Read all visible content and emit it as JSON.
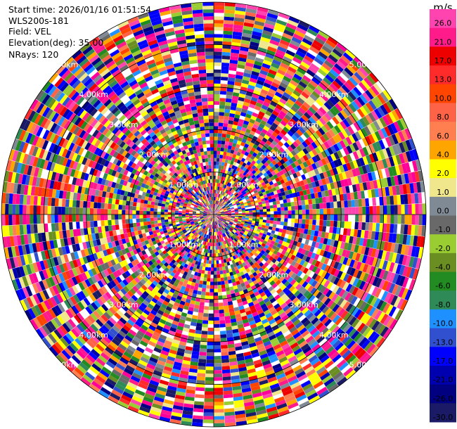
{
  "header": {
    "start_time": "Start time: 2026/01/16 01:51:54",
    "station": "WLS200s-181",
    "field": "Field: VEL",
    "elevation": "Elevation(deg): 35.00",
    "nrays": "NRays: 120"
  },
  "chart_data": {
    "type": "heatmap",
    "projection": "polar-ppi",
    "n_rays": 120,
    "max_range_km": 5.0,
    "range_rings_km": [
      1.0,
      2.0,
      3.0,
      4.0,
      5.0
    ],
    "ring_labels": [
      "1.00km",
      "2.00km",
      "3.00km",
      "4.00km",
      "5.00km"
    ],
    "colorbar": {
      "title": "m/s",
      "tick_labels": [
        "26.0",
        "21.0",
        "17.0",
        "13.0",
        "10.0",
        "8.0",
        "6.0",
        "4.0",
        "2.0",
        "1.0",
        "0.0",
        "-1.0",
        "-2.0",
        "-4.0",
        "-6.0",
        "-8.0",
        "-10.0",
        "-13.0",
        "-17.0",
        "-21.0",
        "-26.0",
        "-30.0"
      ],
      "bins": [
        {
          "lo": 26,
          "hi": 30,
          "color": "#FF44B0"
        },
        {
          "lo": 21,
          "hi": 26,
          "color": "#FF1B8A"
        },
        {
          "lo": 17,
          "hi": 21,
          "color": "#EE0000"
        },
        {
          "lo": 13,
          "hi": 17,
          "color": "#FF2A2A"
        },
        {
          "lo": 10,
          "hi": 13,
          "color": "#FF4500"
        },
        {
          "lo": 8,
          "hi": 10,
          "color": "#FF6347"
        },
        {
          "lo": 6,
          "hi": 8,
          "color": "#FF7F50"
        },
        {
          "lo": 4,
          "hi": 6,
          "color": "#FFA500"
        },
        {
          "lo": 2,
          "hi": 4,
          "color": "#FFFF00"
        },
        {
          "lo": 1,
          "hi": 2,
          "color": "#F0E68C"
        },
        {
          "lo": 0,
          "hi": 1,
          "color": "#808A94"
        },
        {
          "lo": -1,
          "hi": 0,
          "color": "#696969"
        },
        {
          "lo": -2,
          "hi": -1,
          "color": "#9ACD32"
        },
        {
          "lo": -4,
          "hi": -2,
          "color": "#6B8E23"
        },
        {
          "lo": -6,
          "hi": -4,
          "color": "#228B22"
        },
        {
          "lo": -8,
          "hi": -6,
          "color": "#2E8B57"
        },
        {
          "lo": -10,
          "hi": -8,
          "color": "#1E90FF"
        },
        {
          "lo": -13,
          "hi": -10,
          "color": "#3050D0"
        },
        {
          "lo": -17,
          "hi": -13,
          "color": "#0000FF"
        },
        {
          "lo": -21,
          "hi": -17,
          "color": "#0000B0"
        },
        {
          "lo": -26,
          "hi": -21,
          "color": "#000080"
        },
        {
          "lo": -30,
          "hi": -26,
          "color": "#1A1A66"
        }
      ]
    }
  }
}
